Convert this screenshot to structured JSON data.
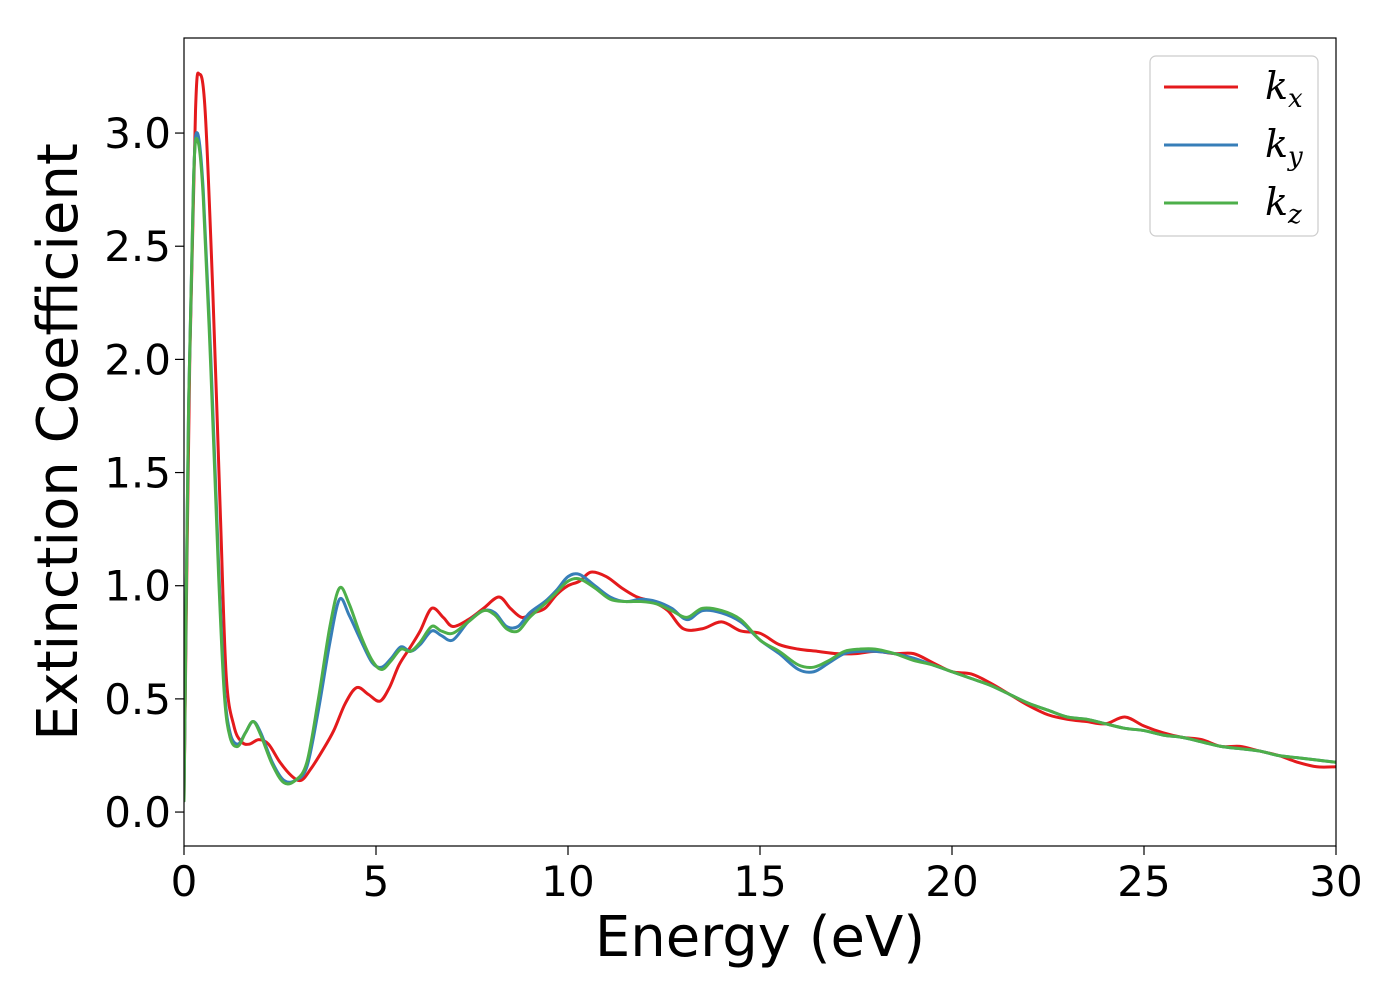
{
  "chart_data": {
    "type": "line",
    "title": "",
    "xlabel": "Energy (eV)",
    "ylabel": "Extinction Coefficient",
    "xlim": [
      0,
      30
    ],
    "ylim": [
      -0.15,
      3.42
    ],
    "xticks": [
      0,
      5,
      10,
      15,
      20,
      25,
      30
    ],
    "yticks": [
      "0.0",
      "0.5",
      "1.0",
      "1.5",
      "2.0",
      "2.5",
      "3.0"
    ],
    "grid": false,
    "legend_position": "top-right",
    "series": [
      {
        "name": "k",
        "subscript": "x",
        "color": "#e41a1c",
        "points": [
          [
            0,
            0.05
          ],
          [
            0.15,
            2.0
          ],
          [
            0.3,
            3.1
          ],
          [
            0.4,
            3.26
          ],
          [
            0.55,
            3.1
          ],
          [
            0.75,
            2.3
          ],
          [
            0.95,
            1.3
          ],
          [
            1.1,
            0.6
          ],
          [
            1.3,
            0.38
          ],
          [
            1.5,
            0.31
          ],
          [
            1.7,
            0.3
          ],
          [
            1.95,
            0.32
          ],
          [
            2.2,
            0.3
          ],
          [
            2.5,
            0.22
          ],
          [
            2.8,
            0.16
          ],
          [
            3.05,
            0.14
          ],
          [
            3.3,
            0.19
          ],
          [
            3.6,
            0.27
          ],
          [
            3.9,
            0.36
          ],
          [
            4.2,
            0.48
          ],
          [
            4.5,
            0.55
          ],
          [
            4.8,
            0.52
          ],
          [
            5.1,
            0.49
          ],
          [
            5.35,
            0.55
          ],
          [
            5.6,
            0.65
          ],
          [
            5.9,
            0.73
          ],
          [
            6.15,
            0.8
          ],
          [
            6.45,
            0.9
          ],
          [
            6.75,
            0.86
          ],
          [
            7.0,
            0.82
          ],
          [
            7.4,
            0.85
          ],
          [
            7.8,
            0.9
          ],
          [
            8.2,
            0.95
          ],
          [
            8.5,
            0.9
          ],
          [
            8.8,
            0.86
          ],
          [
            9.1,
            0.88
          ],
          [
            9.4,
            0.9
          ],
          [
            9.7,
            0.96
          ],
          [
            10.0,
            1.0
          ],
          [
            10.3,
            1.02
          ],
          [
            10.6,
            1.06
          ],
          [
            11.0,
            1.04
          ],
          [
            11.4,
            0.99
          ],
          [
            11.8,
            0.95
          ],
          [
            12.2,
            0.93
          ],
          [
            12.6,
            0.89
          ],
          [
            13.0,
            0.81
          ],
          [
            13.5,
            0.81
          ],
          [
            14.0,
            0.84
          ],
          [
            14.5,
            0.8
          ],
          [
            15.0,
            0.79
          ],
          [
            15.5,
            0.74
          ],
          [
            16.0,
            0.72
          ],
          [
            16.5,
            0.71
          ],
          [
            17.0,
            0.7
          ],
          [
            17.5,
            0.7
          ],
          [
            18.0,
            0.71
          ],
          [
            18.5,
            0.7
          ],
          [
            19.0,
            0.7
          ],
          [
            19.5,
            0.66
          ],
          [
            20.0,
            0.62
          ],
          [
            20.5,
            0.61
          ],
          [
            21.0,
            0.57
          ],
          [
            21.5,
            0.52
          ],
          [
            22.0,
            0.47
          ],
          [
            22.5,
            0.43
          ],
          [
            23.0,
            0.41
          ],
          [
            23.5,
            0.4
          ],
          [
            24.0,
            0.39
          ],
          [
            24.5,
            0.42
          ],
          [
            25.0,
            0.38
          ],
          [
            25.5,
            0.35
          ],
          [
            26.0,
            0.33
          ],
          [
            26.5,
            0.32
          ],
          [
            27.0,
            0.29
          ],
          [
            27.5,
            0.29
          ],
          [
            28.0,
            0.27
          ],
          [
            28.5,
            0.25
          ],
          [
            29.0,
            0.22
          ],
          [
            29.5,
            0.2
          ],
          [
            30.0,
            0.2
          ]
        ]
      },
      {
        "name": "k",
        "subscript": "y",
        "color": "#377eb8",
        "points": [
          [
            0,
            0.05
          ],
          [
            0.12,
            1.8
          ],
          [
            0.25,
            2.8
          ],
          [
            0.35,
            3.0
          ],
          [
            0.5,
            2.75
          ],
          [
            0.7,
            2.0
          ],
          [
            0.9,
            1.1
          ],
          [
            1.05,
            0.55
          ],
          [
            1.2,
            0.35
          ],
          [
            1.4,
            0.3
          ],
          [
            1.6,
            0.35
          ],
          [
            1.8,
            0.4
          ],
          [
            2.0,
            0.35
          ],
          [
            2.3,
            0.22
          ],
          [
            2.6,
            0.14
          ],
          [
            2.9,
            0.14
          ],
          [
            3.2,
            0.2
          ],
          [
            3.5,
            0.45
          ],
          [
            3.8,
            0.75
          ],
          [
            4.05,
            0.94
          ],
          [
            4.3,
            0.87
          ],
          [
            4.6,
            0.76
          ],
          [
            4.9,
            0.66
          ],
          [
            5.15,
            0.64
          ],
          [
            5.4,
            0.68
          ],
          [
            5.65,
            0.73
          ],
          [
            5.9,
            0.71
          ],
          [
            6.15,
            0.74
          ],
          [
            6.45,
            0.8
          ],
          [
            6.7,
            0.78
          ],
          [
            7.0,
            0.76
          ],
          [
            7.4,
            0.84
          ],
          [
            7.8,
            0.89
          ],
          [
            8.1,
            0.88
          ],
          [
            8.4,
            0.82
          ],
          [
            8.7,
            0.82
          ],
          [
            9.0,
            0.88
          ],
          [
            9.4,
            0.93
          ],
          [
            9.7,
            0.98
          ],
          [
            10.0,
            1.04
          ],
          [
            10.3,
            1.05
          ],
          [
            10.7,
            1.0
          ],
          [
            11.1,
            0.95
          ],
          [
            11.5,
            0.93
          ],
          [
            11.9,
            0.94
          ],
          [
            12.3,
            0.93
          ],
          [
            12.7,
            0.9
          ],
          [
            13.1,
            0.85
          ],
          [
            13.5,
            0.89
          ],
          [
            14.0,
            0.88
          ],
          [
            14.5,
            0.84
          ],
          [
            15.0,
            0.76
          ],
          [
            15.5,
            0.7
          ],
          [
            16.0,
            0.63
          ],
          [
            16.4,
            0.62
          ],
          [
            16.8,
            0.66
          ],
          [
            17.2,
            0.7
          ],
          [
            17.6,
            0.71
          ],
          [
            18.0,
            0.71
          ],
          [
            18.5,
            0.7
          ],
          [
            19.0,
            0.68
          ],
          [
            19.5,
            0.65
          ],
          [
            20.0,
            0.62
          ],
          [
            20.5,
            0.59
          ],
          [
            21.0,
            0.56
          ],
          [
            21.5,
            0.52
          ],
          [
            22.0,
            0.48
          ],
          [
            22.5,
            0.45
          ],
          [
            23.0,
            0.42
          ],
          [
            23.5,
            0.41
          ],
          [
            24.0,
            0.39
          ],
          [
            24.5,
            0.37
          ],
          [
            25.0,
            0.36
          ],
          [
            25.5,
            0.34
          ],
          [
            26.0,
            0.33
          ],
          [
            26.5,
            0.31
          ],
          [
            27.0,
            0.29
          ],
          [
            27.5,
            0.28
          ],
          [
            28.0,
            0.27
          ],
          [
            28.5,
            0.25
          ],
          [
            29.0,
            0.24
          ],
          [
            29.5,
            0.23
          ],
          [
            30.0,
            0.22
          ]
        ]
      },
      {
        "name": "k",
        "subscript": "z",
        "color": "#4daf4a",
        "points": [
          [
            0,
            0.05
          ],
          [
            0.12,
            1.8
          ],
          [
            0.25,
            2.8
          ],
          [
            0.35,
            2.97
          ],
          [
            0.5,
            2.72
          ],
          [
            0.7,
            1.95
          ],
          [
            0.9,
            1.05
          ],
          [
            1.05,
            0.52
          ],
          [
            1.2,
            0.33
          ],
          [
            1.4,
            0.29
          ],
          [
            1.6,
            0.35
          ],
          [
            1.8,
            0.4
          ],
          [
            2.0,
            0.34
          ],
          [
            2.3,
            0.21
          ],
          [
            2.6,
            0.13
          ],
          [
            2.9,
            0.14
          ],
          [
            3.2,
            0.22
          ],
          [
            3.5,
            0.5
          ],
          [
            3.8,
            0.82
          ],
          [
            4.05,
            0.99
          ],
          [
            4.3,
            0.92
          ],
          [
            4.6,
            0.78
          ],
          [
            4.9,
            0.67
          ],
          [
            5.15,
            0.63
          ],
          [
            5.4,
            0.67
          ],
          [
            5.65,
            0.72
          ],
          [
            5.9,
            0.71
          ],
          [
            6.15,
            0.75
          ],
          [
            6.45,
            0.82
          ],
          [
            6.7,
            0.8
          ],
          [
            7.0,
            0.79
          ],
          [
            7.4,
            0.84
          ],
          [
            7.8,
            0.89
          ],
          [
            8.1,
            0.87
          ],
          [
            8.4,
            0.81
          ],
          [
            8.7,
            0.8
          ],
          [
            9.0,
            0.86
          ],
          [
            9.4,
            0.92
          ],
          [
            9.7,
            0.97
          ],
          [
            10.0,
            1.02
          ],
          [
            10.3,
            1.03
          ],
          [
            10.7,
            0.99
          ],
          [
            11.1,
            0.94
          ],
          [
            11.5,
            0.93
          ],
          [
            11.9,
            0.93
          ],
          [
            12.3,
            0.92
          ],
          [
            12.7,
            0.89
          ],
          [
            13.1,
            0.86
          ],
          [
            13.5,
            0.9
          ],
          [
            14.0,
            0.89
          ],
          [
            14.5,
            0.85
          ],
          [
            15.0,
            0.76
          ],
          [
            15.5,
            0.71
          ],
          [
            16.0,
            0.65
          ],
          [
            16.4,
            0.64
          ],
          [
            16.8,
            0.67
          ],
          [
            17.2,
            0.71
          ],
          [
            17.6,
            0.72
          ],
          [
            18.0,
            0.72
          ],
          [
            18.5,
            0.7
          ],
          [
            19.0,
            0.67
          ],
          [
            19.5,
            0.65
          ],
          [
            20.0,
            0.62
          ],
          [
            20.5,
            0.59
          ],
          [
            21.0,
            0.56
          ],
          [
            21.5,
            0.52
          ],
          [
            22.0,
            0.48
          ],
          [
            22.5,
            0.45
          ],
          [
            23.0,
            0.42
          ],
          [
            23.5,
            0.41
          ],
          [
            24.0,
            0.39
          ],
          [
            24.5,
            0.37
          ],
          [
            25.0,
            0.36
          ],
          [
            25.5,
            0.34
          ],
          [
            26.0,
            0.33
          ],
          [
            26.5,
            0.31
          ],
          [
            27.0,
            0.29
          ],
          [
            27.5,
            0.28
          ],
          [
            28.0,
            0.27
          ],
          [
            28.5,
            0.25
          ],
          [
            29.0,
            0.24
          ],
          [
            29.5,
            0.23
          ],
          [
            30.0,
            0.22
          ]
        ]
      }
    ]
  }
}
